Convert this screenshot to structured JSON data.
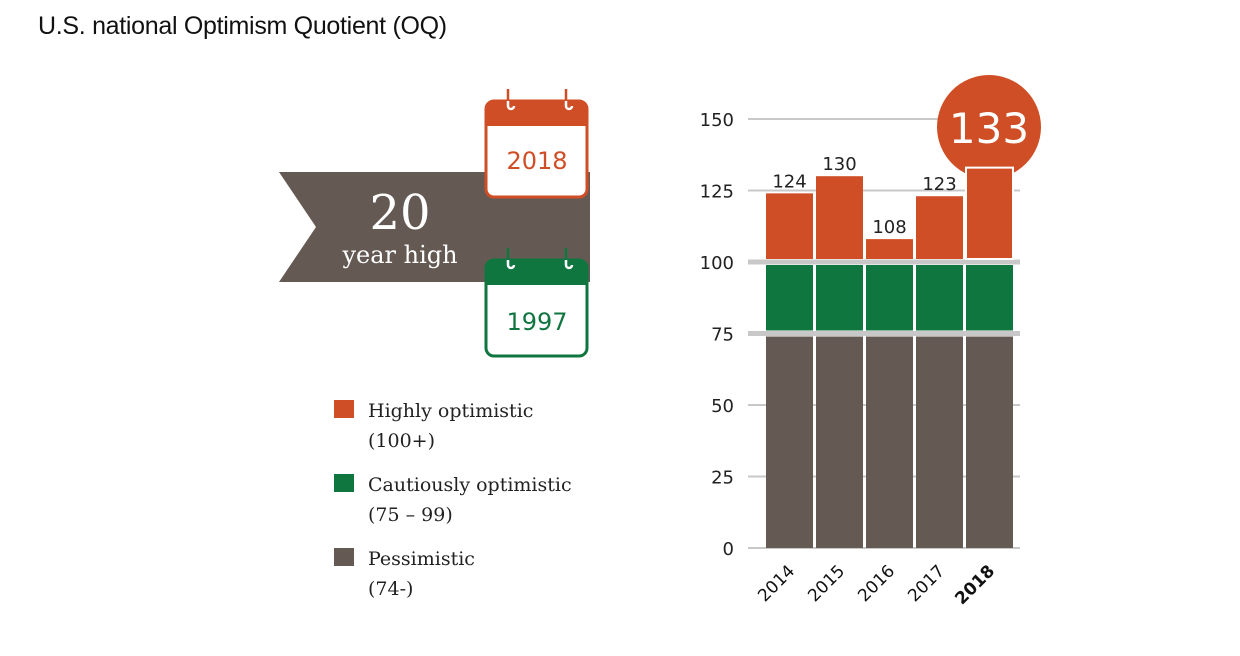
{
  "title": "U.S. national Optimism Quotient (OQ)",
  "colors": {
    "highly": "#d04e25",
    "cautious": "#107640",
    "pessimistic": "#655a53",
    "grid": "#c8c8c8"
  },
  "banner": {
    "number": "20",
    "text": "year high",
    "calendar_top": {
      "year": "2018",
      "icon": "calendar-icon"
    },
    "calendar_bottom": {
      "year": "1997",
      "icon": "calendar-icon"
    }
  },
  "legend": [
    {
      "label": "Highly optimistic",
      "range": "(100+)",
      "color": "#d04e25"
    },
    {
      "label": "Cautiously optimistic",
      "range": "(75 – 99)",
      "color": "#107640"
    },
    {
      "label": "Pessimistic",
      "range": "(74-)",
      "color": "#655a53"
    }
  ],
  "chart_data": {
    "type": "bar",
    "stacked": true,
    "title": "U.S. national Optimism Quotient (OQ)",
    "xlabel": "",
    "ylabel": "",
    "categories": [
      "2014",
      "2015",
      "2016",
      "2017",
      "2018"
    ],
    "totals": [
      124,
      130,
      108,
      123,
      133
    ],
    "highlight": {
      "category": "2018",
      "value": 133
    },
    "series": [
      {
        "name": "Pessimistic (74-)",
        "values": [
          75,
          75,
          75,
          75,
          75
        ]
      },
      {
        "name": "Cautiously optimistic (75 – 99)",
        "values": [
          25,
          25,
          25,
          25,
          25
        ]
      },
      {
        "name": "Highly optimistic (100+)",
        "values": [
          24,
          30,
          8,
          23,
          33
        ]
      }
    ],
    "yticks": [
      0,
      25,
      50,
      75,
      100,
      125,
      150
    ],
    "ylim": [
      0,
      150
    ],
    "grid": true,
    "bold_gridlines": [
      75,
      100
    ],
    "legend_position": "left"
  }
}
